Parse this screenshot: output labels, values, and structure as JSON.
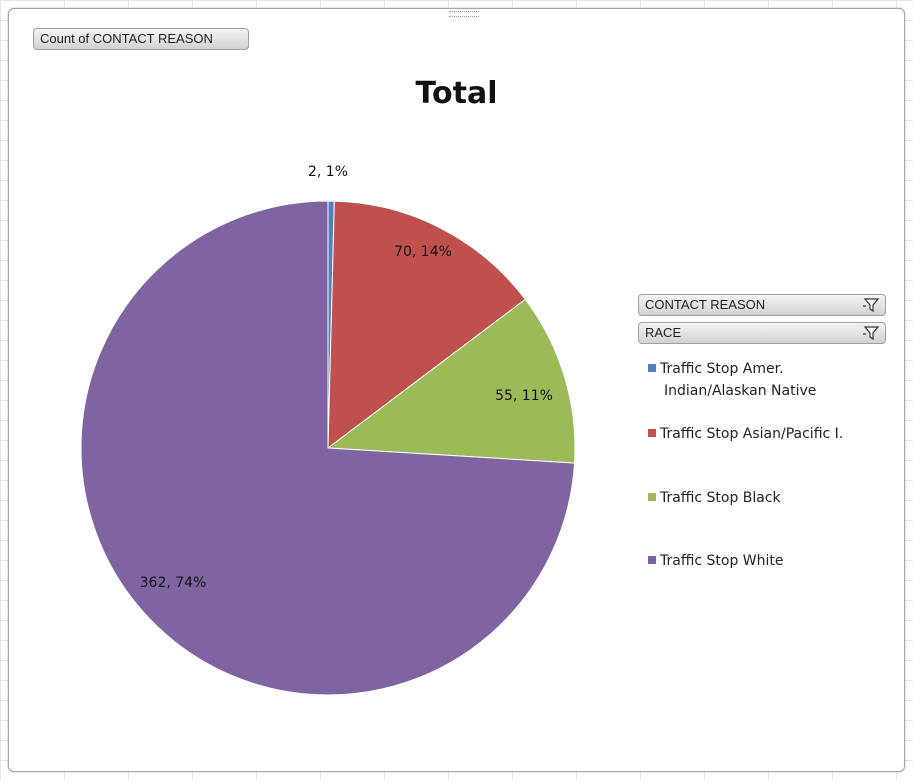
{
  "chart_data": {
    "type": "pie",
    "title": "Total",
    "field_buttons": {
      "values": "Count of CONTACT REASON",
      "filters": [
        "CONTACT REASON",
        "RACE"
      ]
    },
    "slices": [
      {
        "name": "Traffic Stop Amer. Indian/Alaskan Native",
        "value": 2,
        "percent": "1%",
        "label": "2, 1%",
        "color": "#4f81bd"
      },
      {
        "name": "Traffic Stop Asian/Pacific I.",
        "value": 70,
        "percent": "14%",
        "label": "70, 14%",
        "color": "#c0504d"
      },
      {
        "name": "Traffic Stop Black",
        "value": 55,
        "percent": "11%",
        "label": "55, 11%",
        "color": "#9bbb59"
      },
      {
        "name": "Traffic Stop White",
        "value": 362,
        "percent": "74%",
        "label": "362, 74%",
        "color": "#8064a2"
      }
    ],
    "legend_position": "right"
  },
  "legend": {
    "line1": "Traffic Stop Amer.",
    "line1b": "Indian/Alaskan Native",
    "line2": "Traffic Stop Asian/Pacific I.",
    "line3": "Traffic Stop Black",
    "line4": "Traffic Stop White"
  }
}
